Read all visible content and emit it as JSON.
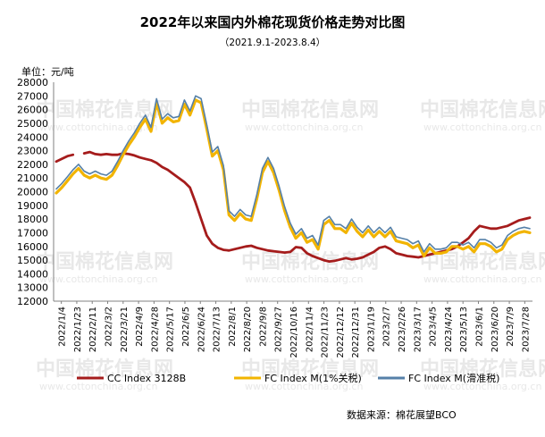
{
  "chart_data": {
    "type": "line",
    "title": "2022年以来国内外棉花现货价格走势对比图",
    "subtitle": "（2021.9.1-2023.8.4）",
    "ylabel": "单位：元/吨",
    "ylim": [
      12000,
      28000
    ],
    "ytick_step": 1000,
    "grid": false,
    "legend_position": "bottom",
    "x_tick_labels": [
      "2022/1/4",
      "2022/1/23",
      "2022/2/11",
      "2022/3/2",
      "2022/3/21",
      "2022/4/9",
      "2022/4/28",
      "2022/5/17",
      "2022/6/5",
      "2022/6/24",
      "2022/7/13",
      "2022/8/1",
      "2022/8/20",
      "2022/9/8",
      "2022/9/27",
      "2022/10/16",
      "2022/11/4",
      "2022/11/23",
      "2022/12/12",
      "2022/12/31",
      "2023/1/19",
      "2023/2/7",
      "2023/2/26",
      "2023/3/17",
      "2023/4/5",
      "2023/4/24",
      "2023/5/13",
      "2023/6/1",
      "2023/6/20",
      "2023/7/9",
      "2023/7/28"
    ],
    "series": [
      {
        "name": "CC Index 3128B",
        "color": "#a51c1c",
        "values": [
          22200,
          22400,
          22600,
          22700,
          null,
          22800,
          22900,
          22750,
          22700,
          22750,
          22700,
          22700,
          22800,
          22750,
          22650,
          22500,
          22400,
          22300,
          22100,
          21800,
          21600,
          21300,
          21000,
          20700,
          20300,
          19200,
          18000,
          16800,
          16200,
          15900,
          15750,
          15700,
          15800,
          15900,
          16000,
          16050,
          15900,
          15800,
          15700,
          15650,
          15600,
          15550,
          15600,
          15950,
          15900,
          15500,
          15300,
          15150,
          15000,
          14900,
          14950,
          15050,
          15150,
          15050,
          15100,
          15200,
          15400,
          15600,
          15900,
          16000,
          15800,
          15500,
          15400,
          15300,
          15250,
          15200,
          15300,
          15400,
          15500,
          15600,
          15700,
          15800,
          16000,
          16300,
          16600,
          17100,
          17500,
          17400,
          17300,
          17300,
          17400,
          17500,
          17700,
          17900,
          18000,
          18100
        ]
      },
      {
        "name": "FC Index M(1%关税)",
        "color": "#f2b400",
        "values": [
          19900,
          20300,
          20800,
          21300,
          21700,
          21200,
          21000,
          21200,
          21000,
          20900,
          21200,
          21900,
          22700,
          23400,
          24000,
          24700,
          25300,
          24400,
          26500,
          25000,
          25400,
          25100,
          25200,
          26400,
          25600,
          26700,
          26500,
          24600,
          22600,
          23000,
          21600,
          18300,
          17900,
          18400,
          18000,
          17900,
          19500,
          21400,
          22200,
          21400,
          20100,
          18600,
          17400,
          16600,
          17000,
          16300,
          16500,
          15800,
          17600,
          17900,
          17300,
          17300,
          17000,
          17700,
          17100,
          16700,
          17200,
          16700,
          17100,
          16700,
          17100,
          16400,
          16300,
          16200,
          15900,
          16100,
          15300,
          15900,
          15500,
          15500,
          15600,
          16000,
          16000,
          15800,
          16000,
          15600,
          16200,
          16200,
          16000,
          15600,
          15800,
          16500,
          16800,
          17000,
          17100,
          17000
        ]
      },
      {
        "name": "FC Index M(滑准税)",
        "color": "#5580a8",
        "values": [
          20200,
          20600,
          21100,
          21600,
          22000,
          21500,
          21300,
          21500,
          21300,
          21200,
          21500,
          22200,
          23000,
          23700,
          24300,
          25000,
          25600,
          24700,
          26800,
          25300,
          25700,
          25400,
          25500,
          26700,
          25900,
          27000,
          26800,
          24900,
          22900,
          23300,
          21900,
          18600,
          18200,
          18700,
          18300,
          18200,
          19800,
          21700,
          22500,
          21700,
          20400,
          18900,
          17700,
          16900,
          17300,
          16600,
          16800,
          16100,
          17900,
          18200,
          17600,
          17600,
          17300,
          18000,
          17400,
          17000,
          17500,
          17000,
          17400,
          17000,
          17400,
          16700,
          16600,
          16500,
          16200,
          16400,
          15600,
          16200,
          15800,
          15800,
          15900,
          16300,
          16300,
          16100,
          16300,
          15900,
          16500,
          16500,
          16300,
          15900,
          16100,
          16800,
          17100,
          17300,
          17400,
          17300
        ]
      }
    ]
  },
  "unit_label": "单位：元/吨",
  "source_label": "数据来源：棉花展望BCO",
  "watermark": {
    "brand": "中国棉花信息网",
    "url": "www.cottonchina.org.cn"
  }
}
